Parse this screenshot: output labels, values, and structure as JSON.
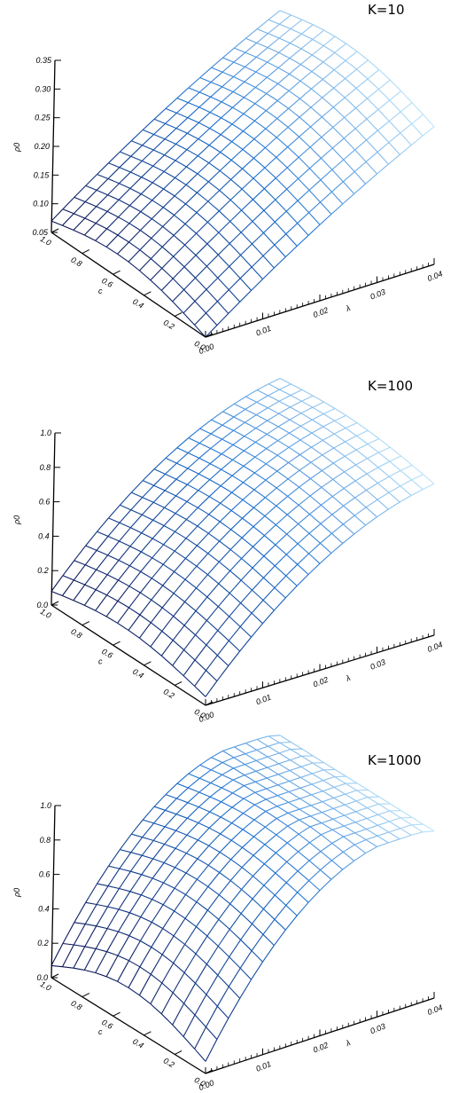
{
  "chart_data": [
    {
      "type": "surface",
      "title": "K=10",
      "zlabel": "ρ0",
      "xlabel": "λ",
      "ylabel": "c",
      "x_ticks": [
        "0.00",
        "0.01",
        "0.02",
        "0.03",
        "0.04"
      ],
      "y_ticks": [
        "0.0",
        "0.2",
        "0.4",
        "0.6",
        "0.8",
        "1.0"
      ],
      "z_ticks": [
        "0.05",
        "0.10",
        "0.15",
        "0.20",
        "0.25",
        "0.30",
        "0.35"
      ],
      "xlim": [
        0,
        0.04
      ],
      "ylim": [
        0,
        1.0
      ],
      "zlim": [
        0.05,
        0.35
      ],
      "x": [
        0.0,
        0.04
      ],
      "y": [
        0.0,
        1.0
      ],
      "surface_samples": [
        {
          "x": 0.0,
          "y": 1.0,
          "z": 0.07
        },
        {
          "x": 0.04,
          "y": 1.0,
          "z": 0.315
        },
        {
          "x": 0.0,
          "y": 0.0,
          "z": 0.05
        },
        {
          "x": 0.04,
          "y": 0.0,
          "z": 0.29
        }
      ]
    },
    {
      "type": "surface",
      "title": "K=100",
      "zlabel": "ρ0",
      "xlabel": "λ",
      "ylabel": "c",
      "x_ticks": [
        "0.00",
        "0.01",
        "0.02",
        "0.03",
        "0.04"
      ],
      "y_ticks": [
        "0.0",
        "0.2",
        "0.4",
        "0.6",
        "0.8",
        "1.0"
      ],
      "z_ticks": [
        "0.0",
        "0.2",
        "0.4",
        "0.6",
        "0.8",
        "1.0"
      ],
      "xlim": [
        0,
        0.04
      ],
      "ylim": [
        0,
        1.0
      ],
      "zlim": [
        0,
        1.0
      ],
      "surface_samples": [
        {
          "x": 0.0,
          "y": 1.0,
          "z": 0.07
        },
        {
          "x": 0.04,
          "y": 1.0,
          "z": 0.91
        },
        {
          "x": 0.0,
          "y": 0.0,
          "z": 0.1
        },
        {
          "x": 0.04,
          "y": 0.0,
          "z": 0.83
        }
      ]
    },
    {
      "type": "surface",
      "title": "K=1000",
      "zlabel": "ρ0",
      "xlabel": "λ",
      "ylabel": "c",
      "x_ticks": [
        "0.00",
        "0.01",
        "0.02",
        "0.03",
        "0.04"
      ],
      "y_ticks": [
        "0.0",
        "0.2",
        "0.4",
        "0.6",
        "0.8",
        "1.0"
      ],
      "z_ticks": [
        "0.0",
        "0.2",
        "0.4",
        "0.6",
        "0.8",
        "1.0"
      ],
      "xlim": [
        0,
        0.04
      ],
      "ylim": [
        0,
        1.0
      ],
      "zlim": [
        0,
        1.0
      ],
      "surface_samples": [
        {
          "x": 0.0,
          "y": 1.0,
          "z": 0.07
        },
        {
          "x": 0.04,
          "y": 1.0,
          "z": 0.98
        },
        {
          "x": 0.0,
          "y": 0.0,
          "z": 0.4
        },
        {
          "x": 0.04,
          "y": 0.0,
          "z": 0.83
        }
      ]
    }
  ],
  "colors": {
    "low": "#0a1050",
    "mid": "#1a6fd0",
    "high": "#bfe6fb",
    "axis": "#000000"
  }
}
